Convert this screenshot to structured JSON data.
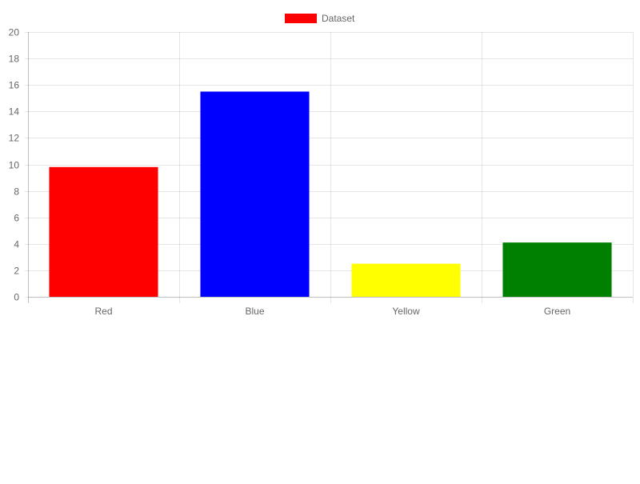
{
  "chart_data": {
    "type": "bar",
    "categories": [
      "Red",
      "Blue",
      "Yellow",
      "Green"
    ],
    "series": [
      {
        "name": "Dataset",
        "values": [
          9.8,
          15.5,
          2.5,
          4.1
        ]
      }
    ],
    "bar_colors": [
      "#ff0000",
      "#0000ff",
      "#ffff00",
      "#008000"
    ],
    "legend_color": "#ff0000",
    "ylim": [
      0,
      20
    ],
    "yticks": [
      0,
      2,
      4,
      6,
      8,
      10,
      12,
      14,
      16,
      18,
      20
    ],
    "grid": true,
    "legend_position": "top-center"
  }
}
